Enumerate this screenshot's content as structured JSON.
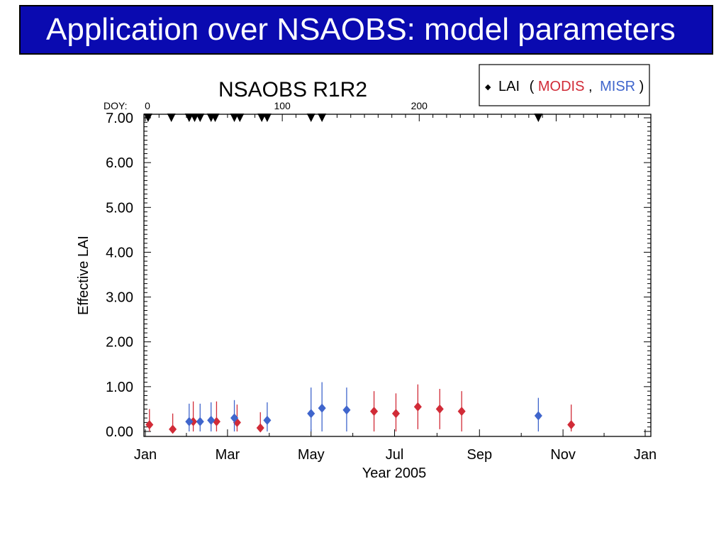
{
  "slide": {
    "title": "Application over NSAOBS: model parameters"
  },
  "colors": {
    "header_bg": "#0a0ab0",
    "modis": "#d12b37",
    "misr": "#3f65cc",
    "doy_marker": "#000000"
  },
  "chart_data": {
    "type": "scatter",
    "title": "NSAOBS  R1R2",
    "ylabel": "Effective LAI",
    "xlabel": "Year 2005",
    "ylim": [
      0,
      7
    ],
    "y_ticks": [
      "0.00",
      "1.00",
      "2.00",
      "3.00",
      "4.00",
      "5.00",
      "6.00",
      "7.00"
    ],
    "x_ticks": [
      {
        "label": "Jan",
        "doy": 0
      },
      {
        "label": "Mar",
        "doy": 60
      },
      {
        "label": "May",
        "doy": 121
      },
      {
        "label": "Jul",
        "doy": 182
      },
      {
        "label": "Sep",
        "doy": 244
      },
      {
        "label": "Nov",
        "doy": 305
      },
      {
        "label": "Jan",
        "doy": 365
      }
    ],
    "xlim_doy": [
      0,
      365
    ],
    "top_axis": {
      "prefix": "DOY:",
      "ticks": [
        {
          "label": "0",
          "doy": 0
        },
        {
          "label": "100",
          "doy": 100
        },
        {
          "label": "200",
          "doy": 200
        }
      ]
    },
    "legend": {
      "marker": "◆",
      "label": "LAI",
      "open": "(",
      "modis": "MODIS",
      "sep": ",",
      "misr": "MISR",
      "close": ")",
      "position": "top-right"
    },
    "doy_markers": [
      2,
      19,
      32,
      36,
      40,
      48,
      51,
      65,
      69,
      85,
      89,
      121,
      129,
      287
    ],
    "series": [
      {
        "name": "MODIS",
        "color": "#d12b37",
        "points": [
          {
            "doy": 3,
            "lai": 0.15,
            "err": 0.35
          },
          {
            "doy": 20,
            "lai": 0.05,
            "err": 0.35
          },
          {
            "doy": 35,
            "lai": 0.22,
            "err": 0.45
          },
          {
            "doy": 52,
            "lai": 0.22,
            "err": 0.45
          },
          {
            "doy": 67,
            "lai": 0.2,
            "err": 0.4
          },
          {
            "doy": 84,
            "lai": 0.08,
            "err": 0.35
          },
          {
            "doy": 167,
            "lai": 0.45,
            "err": 0.45
          },
          {
            "doy": 183,
            "lai": 0.4,
            "err": 0.45
          },
          {
            "doy": 199,
            "lai": 0.55,
            "err": 0.5
          },
          {
            "doy": 215,
            "lai": 0.5,
            "err": 0.45
          },
          {
            "doy": 231,
            "lai": 0.45,
            "err": 0.45
          },
          {
            "doy": 311,
            "lai": 0.15,
            "err": 0.45
          }
        ]
      },
      {
        "name": "MISR",
        "color": "#3f65cc",
        "points": [
          {
            "doy": 32,
            "lai": 0.22,
            "err": 0.4
          },
          {
            "doy": 40,
            "lai": 0.22,
            "err": 0.4
          },
          {
            "doy": 48,
            "lai": 0.25,
            "err": 0.4
          },
          {
            "doy": 65,
            "lai": 0.3,
            "err": 0.4
          },
          {
            "doy": 89,
            "lai": 0.25,
            "err": 0.4
          },
          {
            "doy": 121,
            "lai": 0.4,
            "err": 0.58
          },
          {
            "doy": 129,
            "lai": 0.52,
            "err": 0.58
          },
          {
            "doy": 147,
            "lai": 0.48,
            "err": 0.5
          },
          {
            "doy": 287,
            "lai": 0.35,
            "err": 0.4
          }
        ]
      }
    ]
  }
}
